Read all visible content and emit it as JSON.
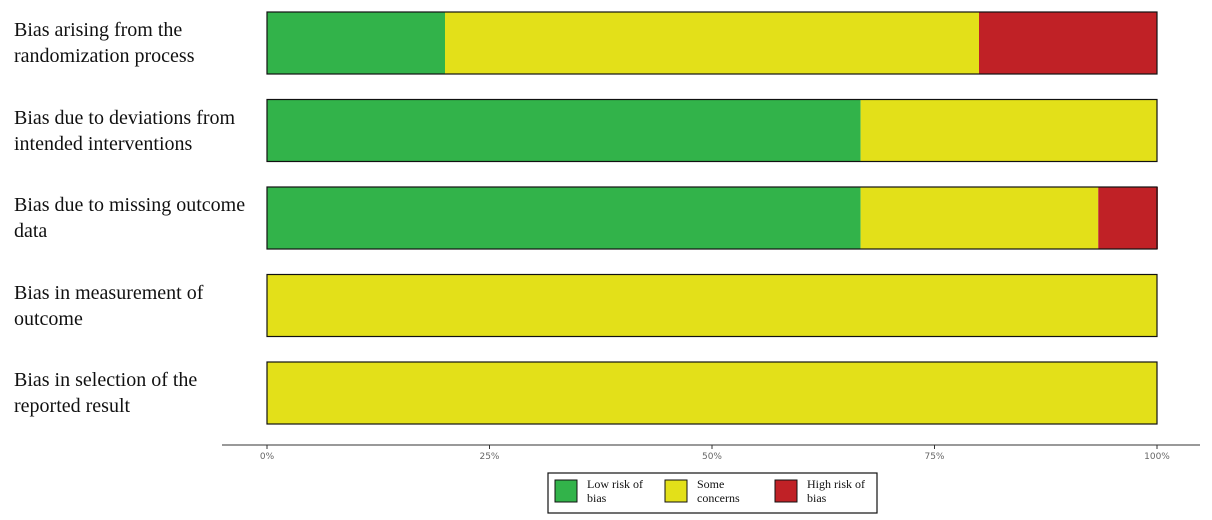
{
  "chart_data": {
    "type": "stacked-bar-horizontal",
    "categories": [
      "Bias arising from the randomization process",
      "Bias due to deviations from intended interventions",
      "Bias due to missing outcome data",
      "Bias in measurement of outcome",
      "Bias in selection of the reported result"
    ],
    "series": [
      {
        "name": "Low risk of bias",
        "color": "#32b34a",
        "values": [
          20,
          66.7,
          66.7,
          0,
          0
        ]
      },
      {
        "name": "Some concerns",
        "color": "#e3e019",
        "values": [
          60,
          33.3,
          26.7,
          100,
          100
        ]
      },
      {
        "name": "High risk of bias",
        "color": "#c02126",
        "values": [
          20,
          0,
          6.7,
          0,
          0
        ]
      }
    ],
    "xlim": [
      0,
      100
    ],
    "xticks": [
      {
        "value": 0,
        "label": "0%"
      },
      {
        "value": 25,
        "label": "25%"
      },
      {
        "value": 50,
        "label": "50%"
      },
      {
        "value": 75,
        "label": "75%"
      },
      {
        "value": 100,
        "label": "100%"
      }
    ]
  }
}
